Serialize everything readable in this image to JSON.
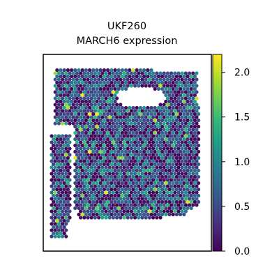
{
  "chart_data": {
    "type": "scatter",
    "subtype": "spatial-hexbin",
    "title_line1": "UKF260",
    "title_line2": "MARCH6 expression",
    "xlabel": "",
    "ylabel": "",
    "colorbar": {
      "colormap": "viridis",
      "range": [
        0.0,
        2.2
      ],
      "ticks": [
        "0.0",
        "0.5",
        "1.0",
        "1.5",
        "2.0"
      ],
      "tick_values": [
        0.0,
        0.5,
        1.0,
        1.5,
        2.0
      ]
    },
    "colors": {
      "viridis": [
        "#440154",
        "#482878",
        "#3e4989",
        "#31688e",
        "#26828e",
        "#1f9e89",
        "#35b779",
        "#6ece58",
        "#b5de2b",
        "#fde725"
      ]
    },
    "value_distribution": {
      "dominant_range": [
        0.0,
        1.0
      ],
      "max_observed": 2.2
    }
  }
}
